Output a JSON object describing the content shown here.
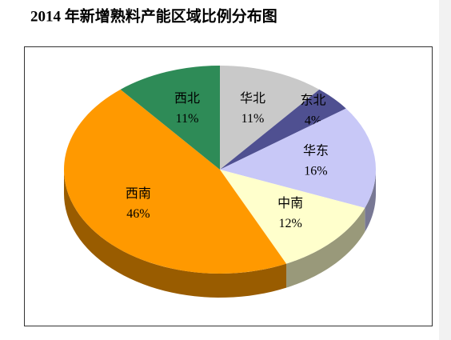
{
  "chart_data": {
    "type": "pie3d",
    "title": "2014 年新增熟料产能区域比例分布图",
    "categories": [
      "华北",
      "东北",
      "华东",
      "中南",
      "西南",
      "西北"
    ],
    "values": [
      11,
      4,
      16,
      12,
      46,
      11
    ],
    "value_labels": [
      "11%",
      "4%",
      "16%",
      "12%",
      "46%",
      "11%"
    ],
    "colors": [
      "#c9c9c9",
      "#4f5091",
      "#c8c8f7",
      "#ffffcc",
      "#ff9900",
      "#2e8b57"
    ]
  }
}
